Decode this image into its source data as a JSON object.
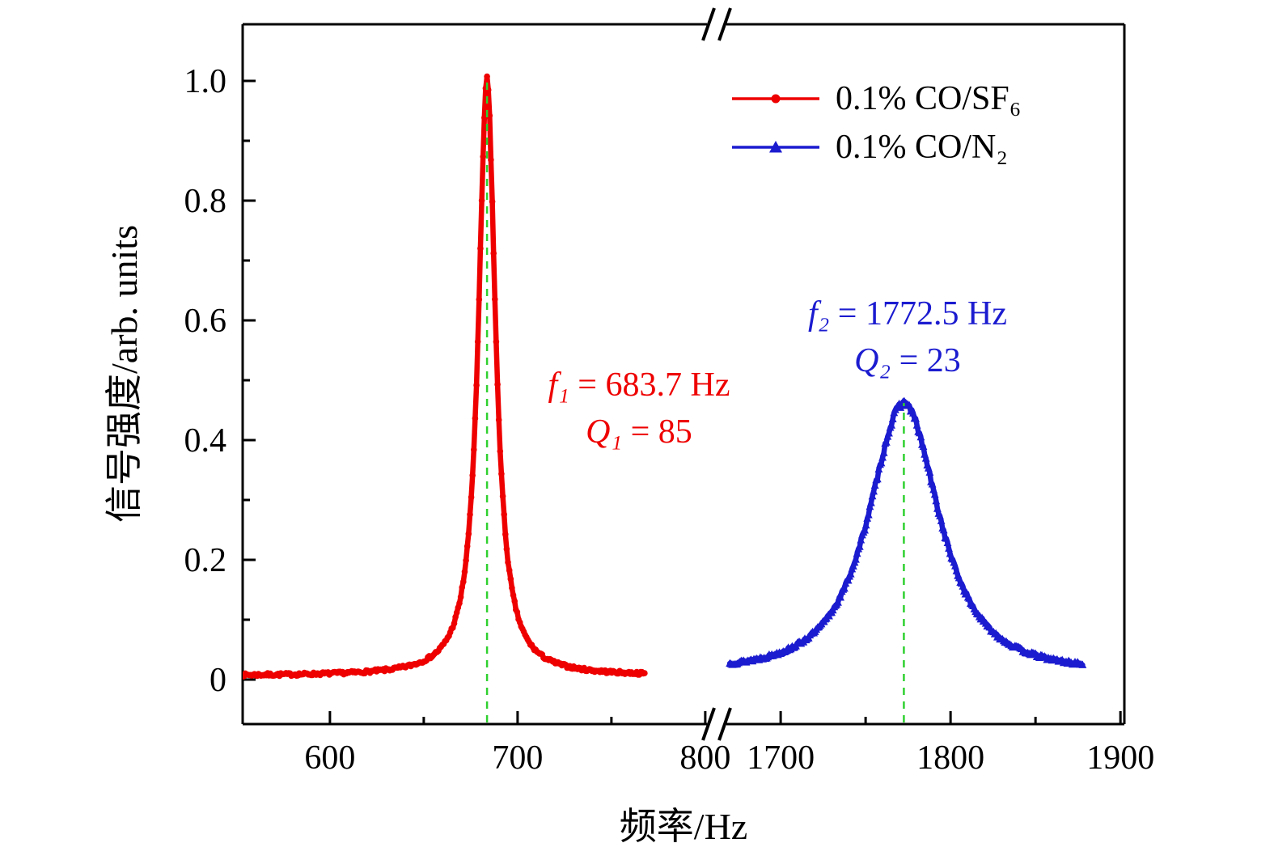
{
  "chart_data": {
    "type": "line",
    "title": "",
    "xlabel": "频率/Hz",
    "ylabel": "信号强度/arb. units",
    "grid": false,
    "legend_position": "top-right-inside",
    "axis_break": {
      "axis": "x",
      "between": [
        803.5,
        1665.2
      ]
    },
    "ylim": [
      -0.075,
      1.095
    ],
    "y_axis": {
      "tick_values": [
        0,
        0.2,
        0.4,
        0.6,
        0.8,
        1.0
      ],
      "tick_labels": [
        "0",
        "0.2",
        "0.4",
        "0.6",
        "0.8",
        "1.0"
      ],
      "minor_tick_values": [
        0.1,
        0.3,
        0.5,
        0.7,
        0.9
      ]
    },
    "segments": [
      {
        "domain": [
          553.5,
          803.5
        ],
        "tick_values": [
          600,
          700,
          800
        ],
        "minor_tick_values": [
          650,
          750
        ]
      },
      {
        "domain": [
          1665.2,
          1902.3
        ],
        "tick_values": [
          1700,
          1800,
          1900
        ],
        "minor_tick_values": [
          1750,
          1850
        ]
      }
    ],
    "series": [
      {
        "name": "0.1% CO/SF6",
        "label": "0.1% CO/SF₆",
        "color": "#ee0000",
        "marker": "circle",
        "segment": 0,
        "peak_hz": 683.7,
        "q_factor": 85,
        "peak_amplitude": 1.0,
        "baseline": 0.006,
        "fwhm_hz": 11,
        "shape_power": 1,
        "x_range": [
          553.5,
          768
        ],
        "step_hz": 0.7,
        "noise_seed": 7
      },
      {
        "name": "0.1% CO/N2",
        "label": "0.1% CO/N₂",
        "color": "#1b1bd0",
        "marker": "triangle",
        "segment": 1,
        "peak_hz": 1772.5,
        "q_factor": 23,
        "peak_amplitude": 0.462,
        "baseline": 0.012,
        "fwhm_hz": 60,
        "shape_power": 1.35,
        "x_range": [
          1670,
          1878
        ],
        "step_hz": 0.75,
        "noise_seed": 13
      }
    ],
    "peak_guides": [
      {
        "segment": 0,
        "x_hz": 683.7,
        "top_value": 1.0,
        "color": "#2fd12f",
        "style": "dashed"
      },
      {
        "segment": 1,
        "x_hz": 1772.5,
        "top_value": 0.462,
        "color": "#2fd12f",
        "style": "dashed"
      }
    ],
    "annotations": [
      {
        "var1": "f₁",
        "text1": " = 683.7 Hz",
        "var2": "Q₁",
        "text2": " = 85",
        "color": "#ee0000"
      },
      {
        "var1": "f₂",
        "text1": " = 1772.5 Hz",
        "var2": "Q₂",
        "text2": " = 23",
        "color": "#1b1bd0"
      }
    ]
  }
}
